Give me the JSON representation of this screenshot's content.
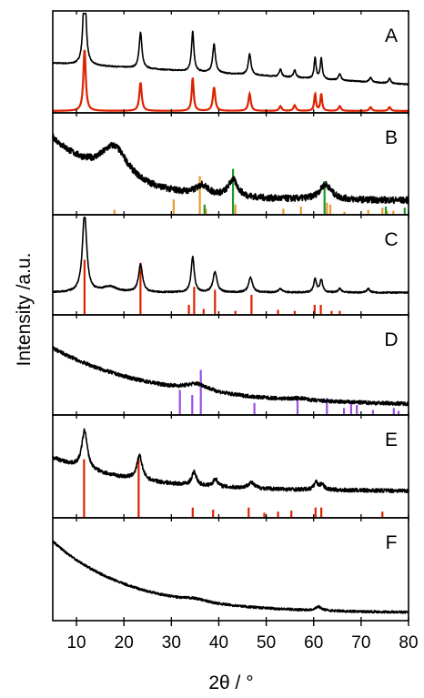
{
  "chart_data": {
    "type": "line",
    "xlabel": "2θ / °",
    "ylabel": "Intensity /a.u.",
    "xlim": [
      5,
      80
    ],
    "xticks": [
      10,
      20,
      30,
      40,
      50,
      60,
      70,
      80
    ],
    "colors": {
      "pattern": "#000000",
      "red": "#dd2200",
      "orange": "#e89a2c",
      "green": "#1a9a2a",
      "purple": "#9b4fe0"
    },
    "panels": [
      {
        "label": "A",
        "base": 0.3,
        "bgSlope": 0.003,
        "noise": 0.006,
        "peaks": [
          [
            11.7,
            0.95,
            0.35
          ],
          [
            23.5,
            0.38,
            0.35
          ],
          [
            34.5,
            0.42,
            0.3
          ],
          [
            39.0,
            0.3,
            0.35
          ],
          [
            46.5,
            0.22,
            0.35
          ],
          [
            53.0,
            0.08,
            0.3
          ],
          [
            56.0,
            0.08,
            0.3
          ],
          [
            60.3,
            0.22,
            0.25
          ],
          [
            61.6,
            0.22,
            0.25
          ],
          [
            65.5,
            0.07,
            0.3
          ],
          [
            72.0,
            0.05,
            0.3
          ],
          [
            76.0,
            0.05,
            0.3
          ]
        ],
        "fitted": {
          "color": "red",
          "peaks": [
            [
              11.7,
              0.65,
              0.3
            ],
            [
              23.5,
              0.3,
              0.3
            ],
            [
              34.5,
              0.35,
              0.25
            ],
            [
              39.0,
              0.25,
              0.3
            ],
            [
              46.5,
              0.18,
              0.3
            ],
            [
              53.0,
              0.05,
              0.3
            ],
            [
              56.0,
              0.06,
              0.3
            ],
            [
              60.3,
              0.18,
              0.22
            ],
            [
              61.6,
              0.18,
              0.22
            ],
            [
              65.5,
              0.05,
              0.3
            ],
            [
              72.0,
              0.04,
              0.3
            ],
            [
              76.0,
              0.04,
              0.3
            ]
          ]
        }
      },
      {
        "label": "B",
        "base": 0.15,
        "decayAmp": 0.65,
        "decayRate": 0.08,
        "noise": 0.035,
        "peaks": [
          [
            18.0,
            0.35,
            3.5
          ],
          [
            36.5,
            0.1,
            1.5
          ],
          [
            43.0,
            0.18,
            1.2
          ],
          [
            62.5,
            0.16,
            1.5
          ]
        ],
        "sticks": [
          {
            "color": "orange",
            "pos": [
              18.0,
              30.5,
              36.0,
              37.3,
              43.5,
              53.6,
              57.3,
              62.8,
              63.5,
              66.5,
              71.5,
              74.5,
              75.5,
              76.8
            ],
            "h": [
              0.05,
              0.15,
              0.38,
              0.06,
              0.1,
              0.06,
              0.08,
              0.12,
              0.1,
              0.03,
              0.05,
              0.07,
              0.04,
              0.04
            ]
          },
          {
            "color": "green",
            "pos": [
              37.0,
              43.0,
              62.3,
              75.2,
              79.2
            ],
            "h": [
              0.1,
              0.45,
              0.33,
              0.08,
              0.07
            ]
          }
        ]
      },
      {
        "label": "C",
        "base": 0.24,
        "noise": 0.008,
        "peaks": [
          [
            11.7,
            0.85,
            0.55
          ],
          [
            17.0,
            0.06,
            2.0
          ],
          [
            23.5,
            0.3,
            0.5
          ],
          [
            34.5,
            0.38,
            0.4
          ],
          [
            39.2,
            0.22,
            0.5
          ],
          [
            46.7,
            0.16,
            0.5
          ],
          [
            53.0,
            0.04,
            0.5
          ],
          [
            60.3,
            0.14,
            0.35
          ],
          [
            61.6,
            0.14,
            0.35
          ],
          [
            65.5,
            0.04,
            0.4
          ],
          [
            71.5,
            0.04,
            0.4
          ]
        ],
        "sticks": [
          {
            "color": "red",
            "pos": [
              11.7,
              23.5,
              33.7,
              34.8,
              36.8,
              39.2,
              43.5,
              46.9,
              52.5,
              56.0,
              60.2,
              61.5,
              63.8,
              65.5
            ],
            "h": [
              0.55,
              0.52,
              0.1,
              0.28,
              0.06,
              0.25,
              0.04,
              0.2,
              0.05,
              0.04,
              0.1,
              0.1,
              0.04,
              0.04
            ]
          }
        ]
      },
      {
        "label": "D",
        "base": 0.1,
        "decayAmp": 0.62,
        "decayRate": 0.045,
        "noise": 0.02,
        "peaks": [
          [
            35.5,
            0.08,
            3.0
          ],
          [
            57.0,
            0.02,
            2.0
          ]
        ],
        "sticks": [
          {
            "color": "purple",
            "pos": [
              31.8,
              34.4,
              36.2,
              47.5,
              56.6,
              62.8,
              66.4,
              67.9,
              69.1,
              72.5,
              76.9,
              77.9
            ],
            "h": [
              0.25,
              0.2,
              0.45,
              0.12,
              0.18,
              0.17,
              0.07,
              0.14,
              0.1,
              0.05,
              0.07,
              0.04
            ]
          }
        ]
      },
      {
        "label": "E",
        "base": 0.28,
        "decayAmp": 0.35,
        "decayRate": 0.06,
        "noise": 0.02,
        "peaks": [
          [
            11.7,
            0.4,
            0.7
          ],
          [
            23.3,
            0.25,
            0.7
          ],
          [
            34.8,
            0.14,
            0.6
          ],
          [
            39.3,
            0.08,
            0.6
          ],
          [
            46.8,
            0.06,
            0.8
          ],
          [
            60.5,
            0.08,
            0.5
          ],
          [
            61.8,
            0.06,
            0.5
          ]
        ],
        "sticks": [
          {
            "color": "red",
            "pos": [
              11.6,
              23.1,
              34.5,
              38.8,
              46.3,
              49.6,
              52.5,
              55.3,
              60.4,
              61.6,
              74.5
            ],
            "h": [
              0.57,
              0.57,
              0.1,
              0.08,
              0.1,
              0.05,
              0.06,
              0.07,
              0.1,
              0.1,
              0.06
            ]
          }
        ]
      },
      {
        "label": "F",
        "base": 0.08,
        "decayAmp": 0.75,
        "decayRate": 0.06,
        "noise": 0.012,
        "peaks": [
          [
            35.0,
            0.03,
            3.0
          ],
          [
            61.0,
            0.04,
            0.8
          ]
        ]
      }
    ]
  }
}
